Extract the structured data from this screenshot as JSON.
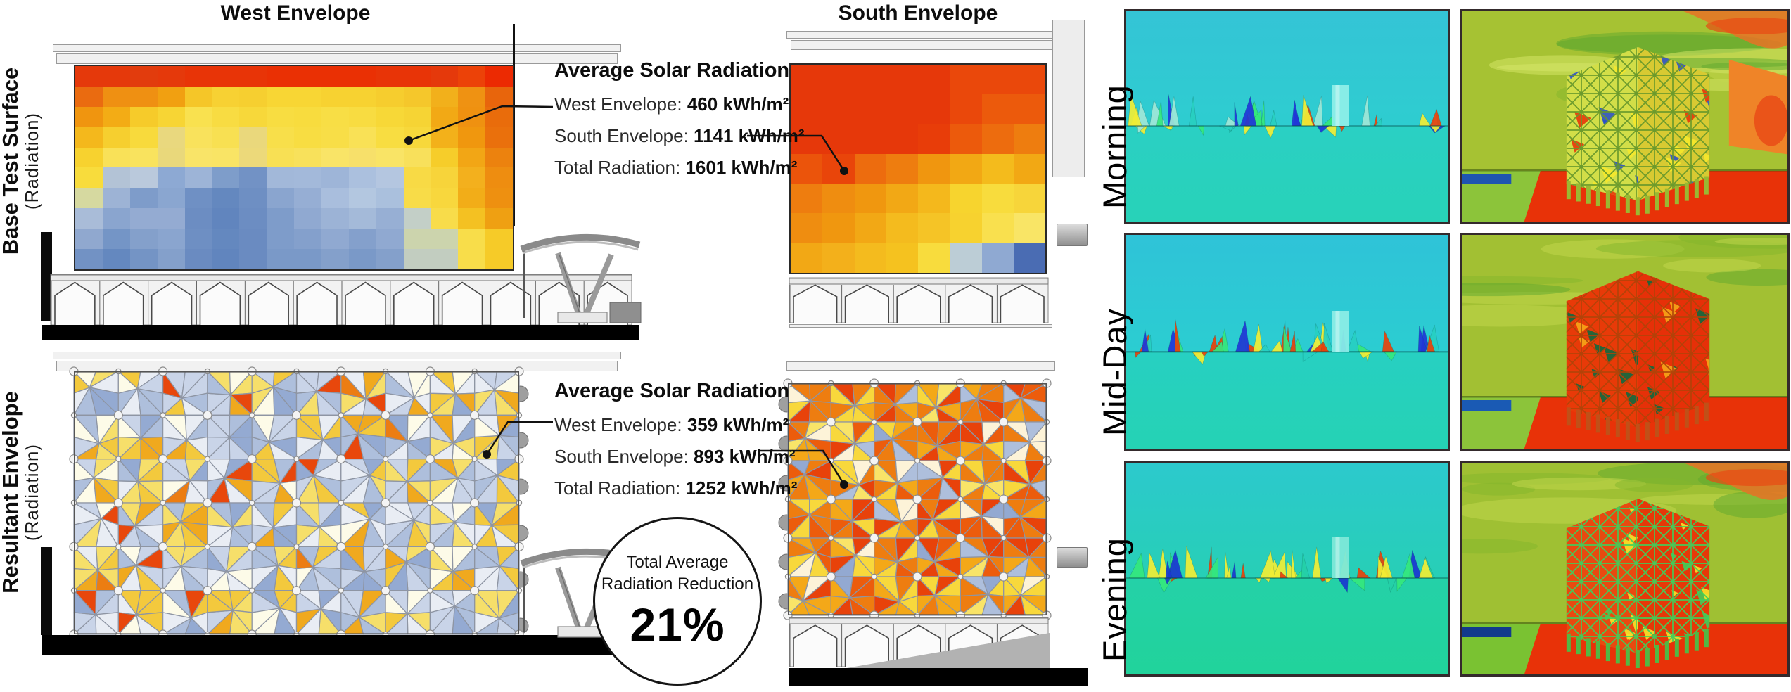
{
  "headers": {
    "west": "West Envelope",
    "south": "South Envelope"
  },
  "rows": {
    "base": {
      "label": "Base Test Surface",
      "sub": "(Radiation)"
    },
    "resultant": {
      "label": "Resultant Envelope",
      "sub": "(Radiation)"
    }
  },
  "annotations": {
    "base": {
      "title": "Average Solar Radiation",
      "west": {
        "label": "West Envelope: ",
        "value": "460 kWh/m²"
      },
      "south": {
        "label": "South Envelope: ",
        "value": "1141 kWh/m²"
      },
      "total": {
        "label": "Total Radiation: ",
        "value": "1601 kWh/m²"
      }
    },
    "resultant": {
      "title": "Average Solar Radiation",
      "west": {
        "label": "West Envelope: ",
        "value": "359 kWh/m²"
      },
      "south": {
        "label": "South Envelope: ",
        "value": "893 kWh/m²"
      },
      "total": {
        "label": "Total Radiation: ",
        "value": "1252 kWh/m²"
      }
    }
  },
  "badge": {
    "line1": "Total Average",
    "line2": "Radiation Reduction",
    "value": "21%"
  },
  "right": {
    "rows": [
      {
        "label": "Morning",
        "side": {
          "bg": [
            "#34c4d6",
            "#2ecdd0",
            "#2ad0c4",
            "#28d2b8"
          ],
          "pillar": "#8deee8",
          "band": [
            "#35e87d",
            "#f2ee35",
            "#e8420a",
            "#2037d8",
            "#28d0c0",
            "#9fe8d8"
          ]
        },
        "persp": {
          "sky": "#a6c233",
          "streaks": [
            "#c3d84e",
            "#84b52c",
            "#5fa82e",
            "#d8e86a"
          ],
          "redStreak": true,
          "groundL": "#8cc43a",
          "groundMain": "#e83208",
          "blueStrip": "#1f55b0",
          "faceL": "#d2de48",
          "faceR": "#d8ca32",
          "lattice": "#66982a",
          "accents": [
            "#e83208",
            "#2a50c8",
            "#f6e82a"
          ],
          "wall": true,
          "col": "#9ab832"
        }
      },
      {
        "label": "Mid-Day",
        "side": {
          "bg": [
            "#2fc3d8",
            "#2bcdd1",
            "#27d0c2",
            "#25d2b4"
          ],
          "pillar": "#8aece6",
          "band": [
            "#35e87d",
            "#f2ee35",
            "#e8420a",
            "#e8420a",
            "#2037d8",
            "#27d0c2"
          ]
        },
        "persp": {
          "sky": "#a2c033",
          "streaks": [
            "#c3d84e",
            "#84b52c",
            "#5fa82e"
          ],
          "redStreak": false,
          "groundL": "#8cc43a",
          "groundMain": "#e83208",
          "blueStrip": "#1a5ab4",
          "faceL": "#e83a08",
          "faceR": "#e63008",
          "lattice": "#b04208",
          "accents": [
            "#f6a818",
            "#0a6a40"
          ],
          "wall": false,
          "col": "#c05018"
        }
      },
      {
        "label": "Evening",
        "side": {
          "bg": [
            "#2cc9cd",
            "#27cfb6",
            "#24d1a8",
            "#21d39b"
          ],
          "pillar": "#7de8d8",
          "band": [
            "#35e87d",
            "#f2ee35",
            "#f2ee35",
            "#e8420a",
            "#1a38d0",
            "#24d0a8"
          ]
        },
        "persp": {
          "sky": "#9fc033",
          "streaks": [
            "#c3d84e",
            "#84b52c",
            "#5fa82e"
          ],
          "redStreak": true,
          "groundL": "#7ac232",
          "groundMain": "#e83208",
          "blueStrip": "#123a8c",
          "faceL": "#e84a10",
          "faceR": "#e63808",
          "lattice": "#3ecf5a",
          "accents": [
            "#f6e82a",
            "#3ecf5a"
          ],
          "wall": false,
          "col": "#52b844"
        }
      }
    ]
  },
  "heatmaps": {
    "west_base": {
      "cells": [
        [
          "#e5390b",
          "#e5390b",
          "#e23c0d",
          "#e5390b",
          "#e83407",
          "#e83407",
          "#e83407",
          "#ea3004",
          "#ea3004",
          "#ea3004",
          "#ea3004",
          "#e83407",
          "#e83407",
          "#e5390b",
          "#ec4208",
          "#ec2a02"
        ],
        [
          "#ea6b10",
          "#ef9012",
          "#ef9012",
          "#f1a011",
          "#f5c628",
          "#f7d133",
          "#f6cf30",
          "#f8d634",
          "#f8d634",
          "#f7d231",
          "#f7d231",
          "#f6cd2e",
          "#f5c72b",
          "#f2b01b",
          "#ef9212",
          "#e8650c"
        ],
        [
          "#f0950f",
          "#f3ac15",
          "#f6cb2a",
          "#f7d534",
          "#f9e14f",
          "#f8dc42",
          "#f7d83a",
          "#f8dd41",
          "#f8dc3e",
          "#f8de45",
          "#f8dc41",
          "#f7d837",
          "#f6d434",
          "#f2a915",
          "#ef9110",
          "#e96c0b"
        ],
        [
          "#f4b81c",
          "#f6cf2f",
          "#f8da3c",
          "#e9d87e",
          "#f9e25c",
          "#f8e052",
          "#ead87c",
          "#f8df4a",
          "#f8dd42",
          "#f8de47",
          "#f9e156",
          "#f8dd41",
          "#f7d83b",
          "#f3b11a",
          "#f0970e",
          "#ea700c"
        ],
        [
          "#f7d22f",
          "#f9e158",
          "#f9e35e",
          "#e9d87b",
          "#f9e468",
          "#f9e465",
          "#ecd97a",
          "#f8e054",
          "#f8e15b",
          "#f9e467",
          "#f7e06a",
          "#f9e466",
          "#f8e05b",
          "#f6cd2a",
          "#f2a615",
          "#ec820e"
        ],
        [
          "#f8dc3c",
          "#b3c3d6",
          "#bac9dc",
          "#8da9d3",
          "#9db4d7",
          "#7e9dca",
          "#7292c5",
          "#a2b8d9",
          "#a3b9da",
          "#9eb5d8",
          "#abc0de",
          "#b4c6e0",
          "#f8da45",
          "#f7d43a",
          "#f3b01d",
          "#ee8d10"
        ],
        [
          "#d6d9a0",
          "#9db3d5",
          "#7e9cca",
          "#8aa6d0",
          "#6f90c4",
          "#6488bf",
          "#6e8fc3",
          "#8aa5cf",
          "#96aed4",
          "#a9bedd",
          "#b3c7e0",
          "#aac0dd",
          "#f8dc48",
          "#f8d73d",
          "#f2ad18",
          "#ee9010"
        ],
        [
          "#a9bcd8",
          "#8aa5cf",
          "#94abd2",
          "#94abd2",
          "#6c8dc2",
          "#6185be",
          "#6c8dc2",
          "#7e9cca",
          "#90a9d1",
          "#9cb3d6",
          "#a4bad9",
          "#97afd4",
          "#c3cfc7",
          "#f8dc4a",
          "#f4c122",
          "#efa012"
        ],
        [
          "#90a8cf",
          "#7495c6",
          "#84a0cb",
          "#8aa5cf",
          "#6e8fc3",
          "#6488bf",
          "#6a8bc1",
          "#7e9cca",
          "#84a0cc",
          "#90a9d1",
          "#84a0cc",
          "#90a9d1",
          "#ccd4ad",
          "#ccd4ad",
          "#f8dd4a",
          "#f6cb28"
        ],
        [
          "#7292c4",
          "#6488bf",
          "#7494c5",
          "#84a0cb",
          "#6a8bc1",
          "#6185be",
          "#6a8bc1",
          "#7a99c8",
          "#7a99c8",
          "#84a0cb",
          "#7a99c8",
          "#84a0cb",
          "#c2cdc0",
          "#c2cdc0",
          "#f8dd4a",
          "#f6cb28"
        ]
      ]
    },
    "south_base": {
      "cells": [
        [
          "#e6380a",
          "#e6380a",
          "#e6380a",
          "#e6380a",
          "#e6380a",
          "#ea480b",
          "#ea480b",
          "#ea480b"
        ],
        [
          "#e6380a",
          "#e6380a",
          "#e6380a",
          "#e6380a",
          "#e6380a",
          "#ea480b",
          "#ec5a0c",
          "#ec5a0c"
        ],
        [
          "#e6380a",
          "#e6380a",
          "#e6380a",
          "#e6380a",
          "#e83d09",
          "#ec5a0c",
          "#ed6c0e",
          "#ee7d0f"
        ],
        [
          "#eb540b",
          "#e9450a",
          "#ed6c0e",
          "#ee7d0f",
          "#f0960f",
          "#f2a814",
          "#f4bb1c",
          "#f2a814"
        ],
        [
          "#ee7d0f",
          "#ef8d10",
          "#f0970f",
          "#f2a815",
          "#f4b81c",
          "#f7d42e",
          "#f8dc3d",
          "#f7d53a"
        ],
        [
          "#ef8d10",
          "#f0970f",
          "#f2a815",
          "#f4bb1e",
          "#f5c426",
          "#f7d22f",
          "#f9e04e",
          "#f9e566"
        ],
        [
          "#f2a815",
          "#f3b01b",
          "#f4bb1e",
          "#f5c21f",
          "#f8dc3d",
          "#bccdd6",
          "#8fa9d2",
          "#4a6cb3"
        ]
      ]
    }
  },
  "envelopes": {
    "west_resultant": {
      "palette": [
        [
          "#c9d4e8",
          3
        ],
        [
          "#aebfdc",
          2.5
        ],
        [
          "#94aad2",
          1.5
        ],
        [
          "#e9edf4",
          2
        ],
        [
          "#f6df6a",
          1.6
        ],
        [
          "#f3c93d",
          1.2
        ],
        [
          "#f0a91e",
          0.9
        ],
        [
          "#ec7d12",
          0.55
        ],
        [
          "#e8470c",
          0.3
        ],
        [
          "#fdfbe8",
          1.1
        ]
      ]
    },
    "south_resultant": {
      "palette": [
        [
          "#ee7d10",
          2.5
        ],
        [
          "#e8420a",
          2.1
        ],
        [
          "#f4a818",
          2
        ],
        [
          "#f8d83c",
          1.8
        ],
        [
          "#f9e468",
          1
        ],
        [
          "#aebfdc",
          0.7
        ],
        [
          "#93a9d1",
          0.45
        ],
        [
          "#fdf3d8",
          0.8
        ],
        [
          "#ec5c0c",
          1.5
        ]
      ]
    }
  }
}
